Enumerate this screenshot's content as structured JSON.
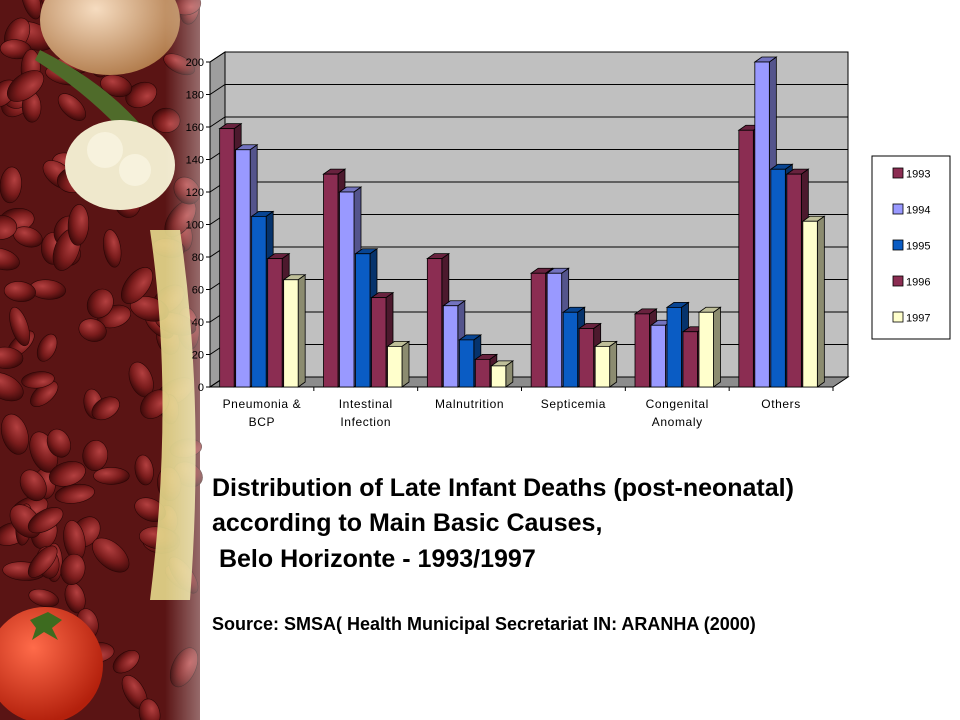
{
  "caption": {
    "line1": "Distribution of Late Infant Deaths (post-neonatal)",
    "line2": "according to Main Basic Causes,",
    "line3": " Belo Horizonte - 1993/1997",
    "source": "Source: SMSA( Health Municipal Secretariat IN: ARANHA (2000)"
  },
  "chart_data": {
    "type": "bar",
    "categories": [
      [
        "Pneumonia &",
        "BCP"
      ],
      [
        "Intestinal",
        "Infection"
      ],
      [
        "Malnutrition"
      ],
      [
        "Septicemia"
      ],
      [
        "Congenital",
        "Anomaly"
      ],
      [
        "Others"
      ]
    ],
    "series": [
      {
        "name": "1993",
        "color": "#8b2d52",
        "values": [
          159,
          131,
          79,
          70,
          45,
          158
        ]
      },
      {
        "name": "1994",
        "color": "#9999ff",
        "values": [
          146,
          120,
          50,
          70,
          38,
          200
        ]
      },
      {
        "name": "1995",
        "color": "#0a5cc4",
        "values": [
          105,
          82,
          29,
          46,
          49,
          134
        ]
      },
      {
        "name": "1996",
        "color": "#8b2d52",
        "values": [
          79,
          55,
          17,
          36,
          34,
          131
        ]
      },
      {
        "name": "1997",
        "color": "#ffffcc",
        "values": [
          66,
          25,
          13,
          25,
          46,
          102
        ]
      }
    ],
    "ylim": [
      0,
      200
    ],
    "yticks": [
      0,
      20,
      40,
      60,
      80,
      100,
      120,
      140,
      160,
      180,
      200
    ],
    "grid": true,
    "legend_position": "right",
    "plot_background": "#c0c0c0"
  }
}
